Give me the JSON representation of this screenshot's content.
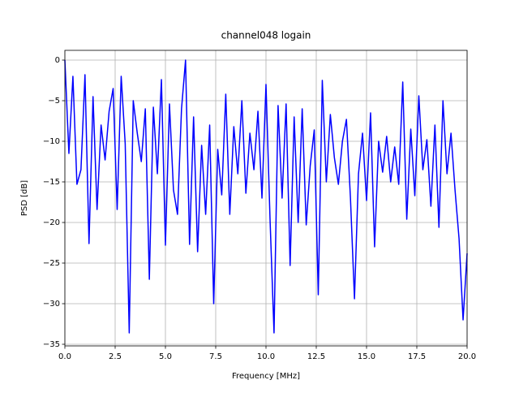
{
  "chart_data": {
    "type": "line",
    "title": "channel048 logain",
    "xlabel": "Frequency [MHz]",
    "ylabel": "PSD [dB]",
    "x": [
      0,
      0.2,
      0.4,
      0.6,
      0.8,
      1.0,
      1.2,
      1.4,
      1.6,
      1.8,
      2.0,
      2.2,
      2.4,
      2.6,
      2.8,
      3.0,
      3.2,
      3.4,
      3.6,
      3.8,
      4.0,
      4.2,
      4.4,
      4.6,
      4.8,
      5.0,
      5.2,
      5.4,
      5.6,
      5.8,
      6.0,
      6.2,
      6.4,
      6.6,
      6.8,
      7.0,
      7.2,
      7.4,
      7.6,
      7.8,
      8.0,
      8.2,
      8.4,
      8.6,
      8.8,
      9.0,
      9.2,
      9.4,
      9.6,
      9.8,
      10.0,
      10.2,
      10.4,
      10.6,
      10.8,
      11.0,
      11.2,
      11.4,
      11.6,
      11.8,
      12.0,
      12.2,
      12.4,
      12.6,
      12.8,
      13.0,
      13.2,
      13.4,
      13.6,
      13.8,
      14.0,
      14.2,
      14.4,
      14.6,
      14.8,
      15.0,
      15.2,
      15.4,
      15.6,
      15.8,
      16.0,
      16.2,
      16.4,
      16.6,
      16.8,
      17.0,
      17.2,
      17.4,
      17.6,
      17.8,
      18.0,
      18.2,
      18.4,
      18.6,
      18.8,
      19.0,
      19.2,
      19.4,
      19.6,
      19.8,
      20.0
    ],
    "series": [
      {
        "color": "#0000ff",
        "values": [
          0,
          -11.5,
          -2,
          -15.3,
          -13.5,
          -1.8,
          -22.6,
          -4.5,
          -18.4,
          -8,
          -12.3,
          -6.3,
          -3.5,
          -18.4,
          -2,
          -10.3,
          -33.6,
          -5,
          -9,
          -12.5,
          -6,
          -27,
          -5.8,
          -14,
          -2.4,
          -22.8,
          -5.4,
          -16,
          -19,
          -6,
          0,
          -22.7,
          -7,
          -23.6,
          -10.5,
          -19,
          -8,
          -30,
          -11,
          -16.6,
          -4.2,
          -19,
          -8.2,
          -14,
          -5,
          -16.4,
          -9,
          -13.5,
          -6.3,
          -17,
          -3,
          -19.5,
          -33.6,
          -5.6,
          -17,
          -5.4,
          -25.3,
          -7,
          -20,
          -6,
          -20.3,
          -13,
          -8.6,
          -28.9,
          -2.5,
          -15,
          -6.7,
          -12,
          -15.3,
          -10,
          -7.3,
          -17,
          -29.4,
          -14,
          -9,
          -17.3,
          -6.5,
          -23,
          -10,
          -13.8,
          -9.4,
          -15,
          -10.7,
          -15.3,
          -2.7,
          -19.6,
          -8.5,
          -16.7,
          -4.4,
          -13.5,
          -9.8,
          -18,
          -8,
          -20.6,
          -5,
          -14,
          -9,
          -16,
          -22,
          -32,
          -23.8
        ]
      }
    ],
    "xlim": [
      0,
      20
    ],
    "ylim": [
      -35.2,
      1.2
    ],
    "xticks": [
      {
        "value": 0,
        "label": "0.0"
      },
      2.5,
      {
        "value": 5,
        "label": "5.0"
      },
      7.5,
      {
        "value": 10,
        "label": "10.0"
      },
      12.5,
      {
        "value": 15,
        "label": "15.0"
      },
      17.5,
      {
        "value": 20,
        "label": "20.0"
      }
    ],
    "yticks": [
      {
        "value": 0,
        "label": "0"
      },
      {
        "value": -5,
        "label": "−5"
      },
      {
        "value": -10,
        "label": "−10"
      },
      {
        "value": -15,
        "label": "−15"
      },
      {
        "value": -20,
        "label": "−20"
      },
      {
        "value": -25,
        "label": "−25"
      },
      {
        "value": -30,
        "label": "−30"
      },
      {
        "value": -35,
        "label": "−35"
      }
    ],
    "grid": true
  }
}
